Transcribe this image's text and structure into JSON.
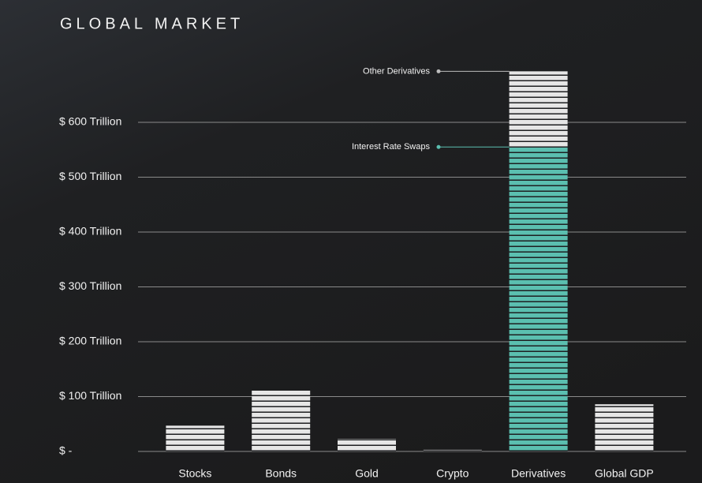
{
  "chart_data": {
    "type": "bar",
    "title": "GLOBAL MARKET",
    "categories": [
      "Stocks",
      "Bonds",
      "Gold",
      "Crypto",
      "Derivatives",
      "Global GDP"
    ],
    "values": [
      47,
      111,
      23,
      3,
      null,
      86
    ],
    "color": "#e6e6e6",
    "segments": [
      {
        "name": "Interest Rate Swaps",
        "value": 555,
        "color": "#5bbfb0"
      },
      {
        "name": "Other Derivatives",
        "value": 138,
        "color": "#e6e6e6"
      }
    ],
    "ylim": [
      0,
      700
    ],
    "yticks": [
      {
        "value": 0,
        "label": "$ -"
      },
      {
        "value": 100,
        "label": "$ 100 Trillion"
      },
      {
        "value": 200,
        "label": "$ 200 Trillion"
      },
      {
        "value": 300,
        "label": "$ 300 Trillion"
      },
      {
        "value": 400,
        "label": "$ 400 Trillion"
      },
      {
        "value": 500,
        "label": "$ 500 Trillion"
      },
      {
        "value": 600,
        "label": "$ 600 Trillion"
      }
    ],
    "grid": true
  }
}
